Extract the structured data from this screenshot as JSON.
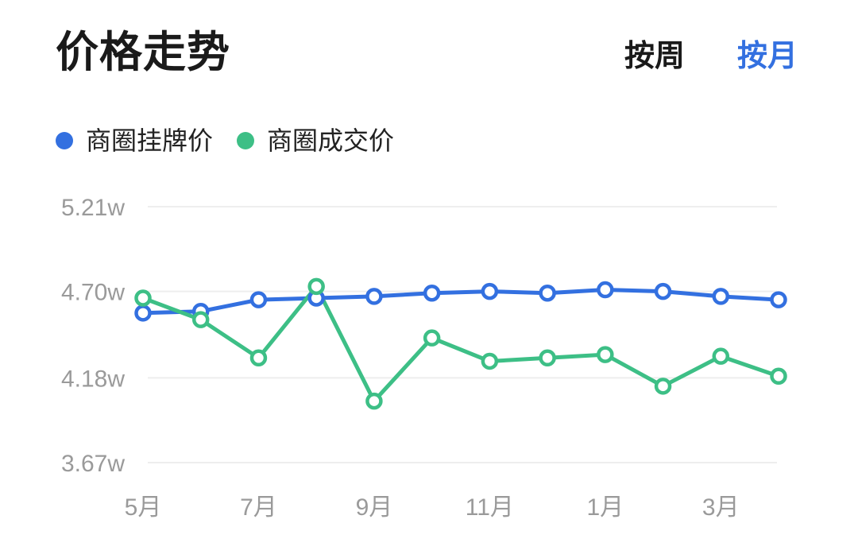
{
  "header": {
    "title": "价格走势",
    "toggle_week": "按周",
    "toggle_month": "按月",
    "active_toggle": "month"
  },
  "colors": {
    "listing": "#3370e0",
    "transaction": "#3dbf86",
    "active_toggle": "#3370e0",
    "axis_text": "#9a9a9a",
    "grid": "#eeeeee"
  },
  "chart_data": {
    "type": "line",
    "x": [
      "5月",
      "6月",
      "7月",
      "8月",
      "9月",
      "10月",
      "11月",
      "12月",
      "1月",
      "2月",
      "3月",
      "4月"
    ],
    "x_tick_labels": [
      "5月",
      "7月",
      "9月",
      "11月",
      "1月",
      "3月"
    ],
    "y_tick_labels": [
      "5.21w",
      "4.70w",
      "4.18w",
      "3.67w"
    ],
    "y_ticks": [
      5.21,
      4.7,
      4.18,
      3.67
    ],
    "ylim": [
      3.67,
      5.21
    ],
    "unit": "w",
    "grid": true,
    "legend_position": "top-left",
    "series": [
      {
        "name": "商圈挂牌价",
        "color": "#3370e0",
        "values": [
          4.57,
          4.58,
          4.65,
          4.66,
          4.67,
          4.69,
          4.7,
          4.69,
          4.71,
          4.7,
          4.67,
          4.65
        ]
      },
      {
        "name": "商圈成交价",
        "color": "#3dbf86",
        "values": [
          4.66,
          4.53,
          4.3,
          4.73,
          4.04,
          4.42,
          4.28,
          4.3,
          4.32,
          4.13,
          4.31,
          4.19
        ]
      }
    ]
  }
}
